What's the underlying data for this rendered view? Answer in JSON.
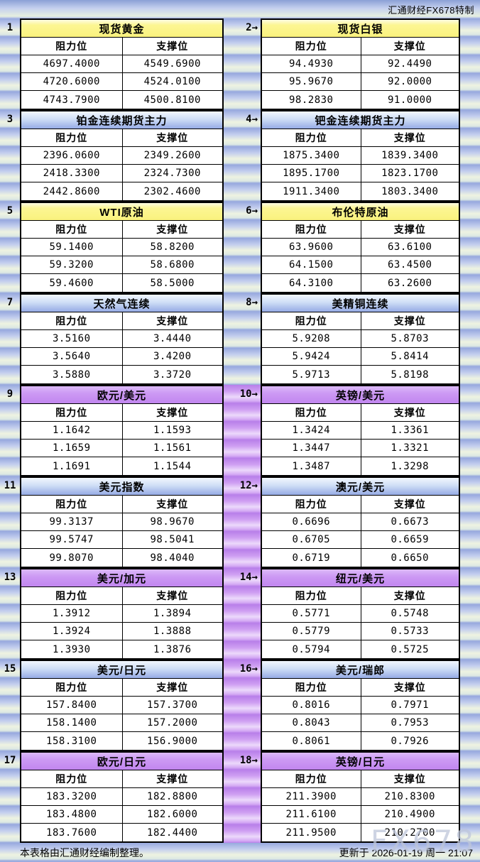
{
  "page": {
    "brand_top_right": "汇通财经FX678特制",
    "col_resistance": "阻力位",
    "col_support": "支撑位",
    "footer_left": "本表格由汇通财经编制整理。",
    "footer_right": "更新于 2026-01-19 周一 21:07",
    "watermark": "FX678"
  },
  "colors": {
    "header_yellow": "#fbf487",
    "header_blue": "#9fb4ea",
    "header_purple": "#c98ff1",
    "stripe_blue": "#a9b6e6",
    "stripe_green": "#eef3e1",
    "stripe_purple": "#cf9ff2",
    "border": "#000000",
    "cell_bg": "#ffffff"
  },
  "chart_data": {
    "type": "table",
    "title": "汇通财经FX678特制 阻力位/支撑位一览",
    "updated": "更新于 2026-01-19 周一 21:07",
    "columns": [
      "阻力位",
      "支撑位"
    ],
    "tables": [
      {
        "tag": "1",
        "title": "现货黄金",
        "style": "yellow",
        "rows": [
          [
            "4697.4000",
            "4549.6900"
          ],
          [
            "4720.6000",
            "4524.0100"
          ],
          [
            "4743.7900",
            "4500.8100"
          ]
        ]
      },
      {
        "tag": "2→",
        "title": "现货白银",
        "style": "yellow",
        "rows": [
          [
            "94.4930",
            "92.4490"
          ],
          [
            "95.9670",
            "92.0000"
          ],
          [
            "98.2830",
            "91.0000"
          ]
        ]
      },
      {
        "tag": "3",
        "title": "铂金连续期货主力",
        "style": "blue",
        "rows": [
          [
            "2396.0600",
            "2349.2600"
          ],
          [
            "2418.3300",
            "2324.7300"
          ],
          [
            "2442.8600",
            "2302.4600"
          ]
        ]
      },
      {
        "tag": "4→",
        "title": "钯金连续期货主力",
        "style": "blue",
        "rows": [
          [
            "1875.3400",
            "1839.3400"
          ],
          [
            "1895.1700",
            "1823.1700"
          ],
          [
            "1911.3400",
            "1803.3400"
          ]
        ]
      },
      {
        "tag": "5",
        "title": "WTI原油",
        "style": "yellow",
        "rows": [
          [
            "59.1400",
            "58.8200"
          ],
          [
            "59.3200",
            "58.6800"
          ],
          [
            "59.4600",
            "58.5000"
          ]
        ]
      },
      {
        "tag": "6→",
        "title": "布伦特原油",
        "style": "yellow",
        "rows": [
          [
            "63.9600",
            "63.6100"
          ],
          [
            "64.1500",
            "63.4500"
          ],
          [
            "64.3100",
            "63.2600"
          ]
        ]
      },
      {
        "tag": "7",
        "title": "天然气连续",
        "style": "blue",
        "rows": [
          [
            "3.5160",
            "3.4440"
          ],
          [
            "3.5640",
            "3.4200"
          ],
          [
            "3.5880",
            "3.3720"
          ]
        ]
      },
      {
        "tag": "8→",
        "title": "美精铜连续",
        "style": "blue",
        "rows": [
          [
            "5.9208",
            "5.8703"
          ],
          [
            "5.9424",
            "5.8414"
          ],
          [
            "5.9713",
            "5.8198"
          ]
        ]
      },
      {
        "tag": "9",
        "title": "欧元/美元",
        "style": "purple",
        "rows": [
          [
            "1.1642",
            "1.1593"
          ],
          [
            "1.1659",
            "1.1561"
          ],
          [
            "1.1691",
            "1.1544"
          ]
        ]
      },
      {
        "tag": "10→",
        "title": "英镑/美元",
        "style": "purple",
        "rows": [
          [
            "1.3424",
            "1.3361"
          ],
          [
            "1.3447",
            "1.3321"
          ],
          [
            "1.3487",
            "1.3298"
          ]
        ]
      },
      {
        "tag": "11",
        "title": "美元指数",
        "style": "blue",
        "rows": [
          [
            "99.3137",
            "98.9670"
          ],
          [
            "99.5747",
            "98.5041"
          ],
          [
            "99.8070",
            "98.4040"
          ]
        ]
      },
      {
        "tag": "12→",
        "title": "澳元/美元",
        "style": "blue",
        "rows": [
          [
            "0.6696",
            "0.6673"
          ],
          [
            "0.6705",
            "0.6659"
          ],
          [
            "0.6719",
            "0.6650"
          ]
        ]
      },
      {
        "tag": "13",
        "title": "美元/加元",
        "style": "purple",
        "rows": [
          [
            "1.3912",
            "1.3894"
          ],
          [
            "1.3924",
            "1.3888"
          ],
          [
            "1.3930",
            "1.3876"
          ]
        ]
      },
      {
        "tag": "14→",
        "title": "纽元/美元",
        "style": "purple",
        "rows": [
          [
            "0.5771",
            "0.5748"
          ],
          [
            "0.5779",
            "0.5733"
          ],
          [
            "0.5794",
            "0.5725"
          ]
        ]
      },
      {
        "tag": "15",
        "title": "美元/日元",
        "style": "blue",
        "rows": [
          [
            "157.8400",
            "157.3700"
          ],
          [
            "158.1400",
            "157.2000"
          ],
          [
            "158.3100",
            "156.9000"
          ]
        ]
      },
      {
        "tag": "16→",
        "title": "美元/瑞郎",
        "style": "blue",
        "rows": [
          [
            "0.8016",
            "0.7971"
          ],
          [
            "0.8043",
            "0.7953"
          ],
          [
            "0.8061",
            "0.7926"
          ]
        ]
      },
      {
        "tag": "17",
        "title": "欧元/日元",
        "style": "purple",
        "rows": [
          [
            "183.3200",
            "182.8800"
          ],
          [
            "183.4800",
            "182.6000"
          ],
          [
            "183.7600",
            "182.4400"
          ]
        ]
      },
      {
        "tag": "18→",
        "title": "英镑/日元",
        "style": "purple",
        "rows": [
          [
            "211.3900",
            "210.8300"
          ],
          [
            "211.6100",
            "210.4900"
          ],
          [
            "211.9500",
            "210.2700"
          ]
        ]
      }
    ]
  }
}
